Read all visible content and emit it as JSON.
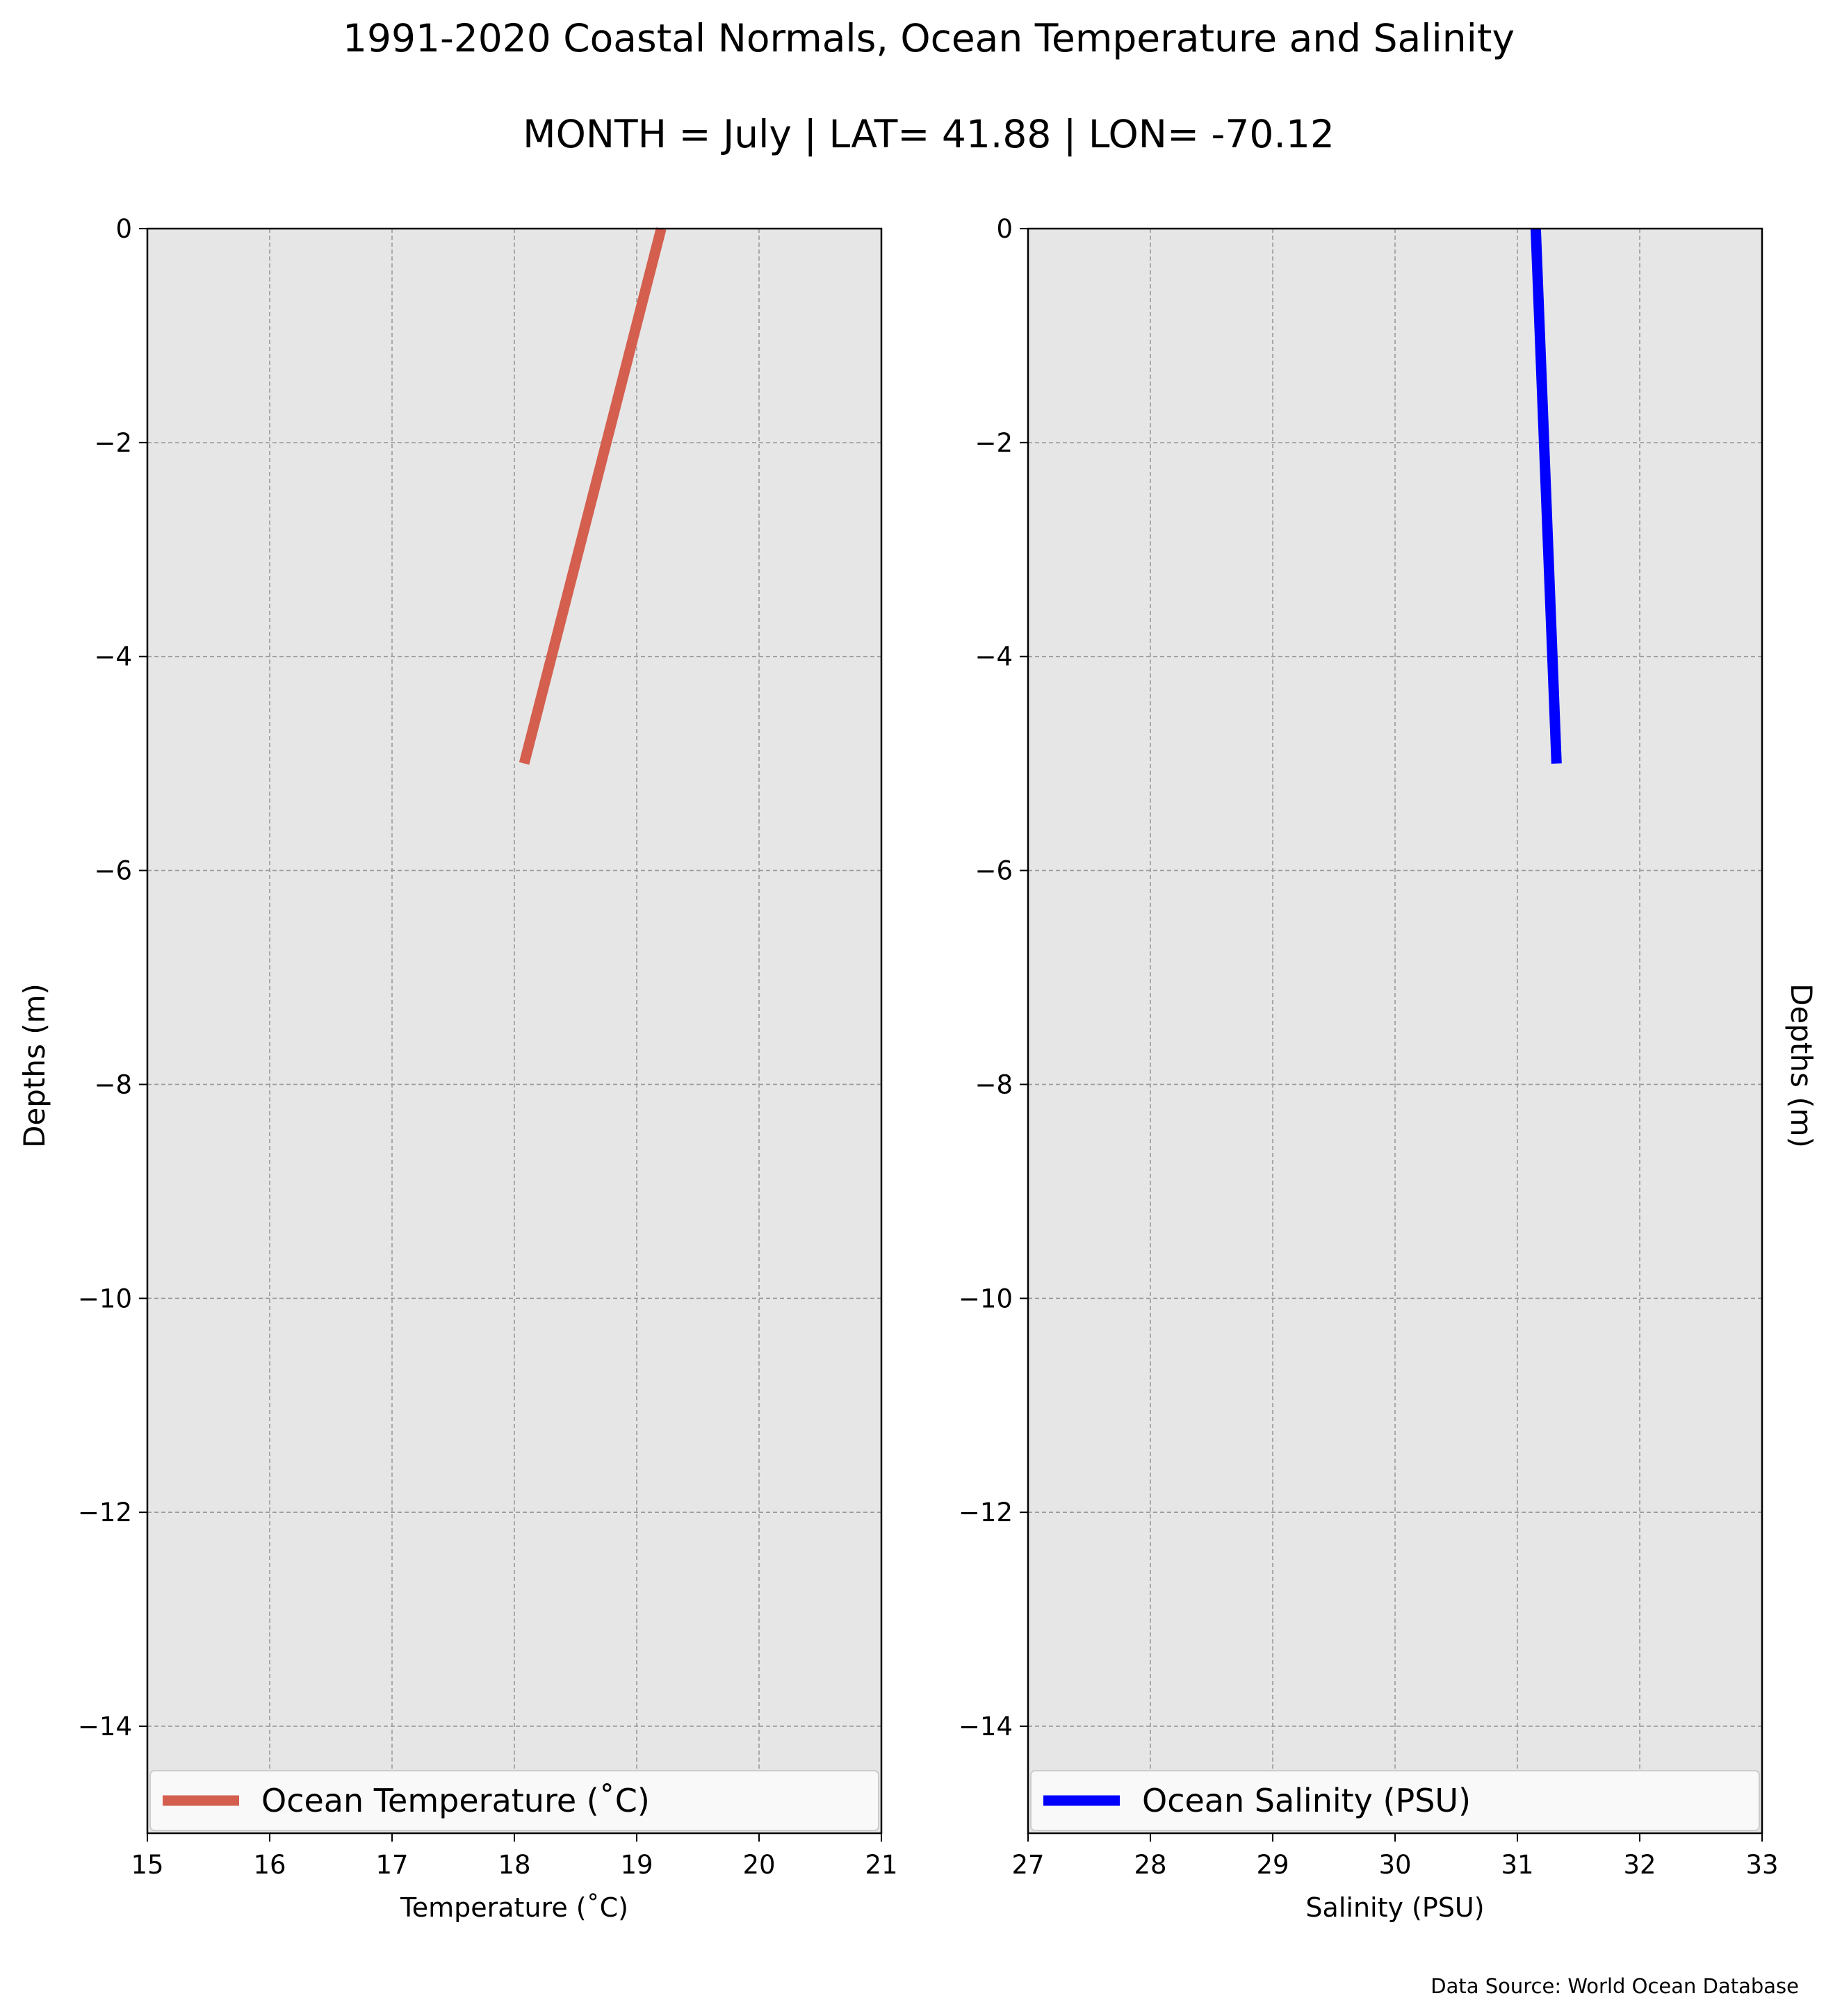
{
  "title": "1991-2020 Coastal Normals, Ocean Temperature and Salinity",
  "subtitle": "MONTH = July | LAT= 41.88 | LON= -70.12",
  "source_note": "Data Source: World Ocean Database",
  "chart_data": [
    {
      "type": "line",
      "xlabel": "Temperature (˚C)",
      "ylabel": "Depths (m)",
      "xlim": [
        15,
        21
      ],
      "ylim": [
        -15,
        0
      ],
      "xticks": [
        15,
        16,
        17,
        18,
        19,
        20,
        21
      ],
      "xtick_labels": [
        "15",
        "16",
        "17",
        "18",
        "19",
        "20",
        "21"
      ],
      "yticks": [
        0,
        -2,
        -4,
        -6,
        -8,
        -10,
        -12,
        -14
      ],
      "ytick_labels": [
        "0",
        "−2",
        "−4",
        "−6",
        "−8",
        "−10",
        "−12",
        "−14"
      ],
      "grid": true,
      "legend_position": "lower-center",
      "series": [
        {
          "name": "Ocean Temperature (˚C)",
          "color": "#d45f4f",
          "x": [
            19.2,
            18.08
          ],
          "y": [
            0,
            -5
          ]
        }
      ]
    },
    {
      "type": "line",
      "xlabel": "Salinity (PSU)",
      "ylabel": "Depths (m)",
      "xlim": [
        27,
        33
      ],
      "ylim": [
        -15,
        0
      ],
      "xticks": [
        27,
        28,
        29,
        30,
        31,
        32,
        33
      ],
      "xtick_labels": [
        "27",
        "28",
        "29",
        "30",
        "31",
        "32",
        "33"
      ],
      "yticks": [
        0,
        -2,
        -4,
        -6,
        -8,
        -10,
        -12,
        -14
      ],
      "ytick_labels": [
        "0",
        "−2",
        "−4",
        "−6",
        "−8",
        "−10",
        "−12",
        "−14"
      ],
      "grid": true,
      "legend_position": "lower-center",
      "series": [
        {
          "name": "Ocean Salinity (PSU)",
          "color": "#0000ff",
          "x": [
            31.15,
            31.32
          ],
          "y": [
            0,
            -5
          ]
        }
      ]
    }
  ]
}
